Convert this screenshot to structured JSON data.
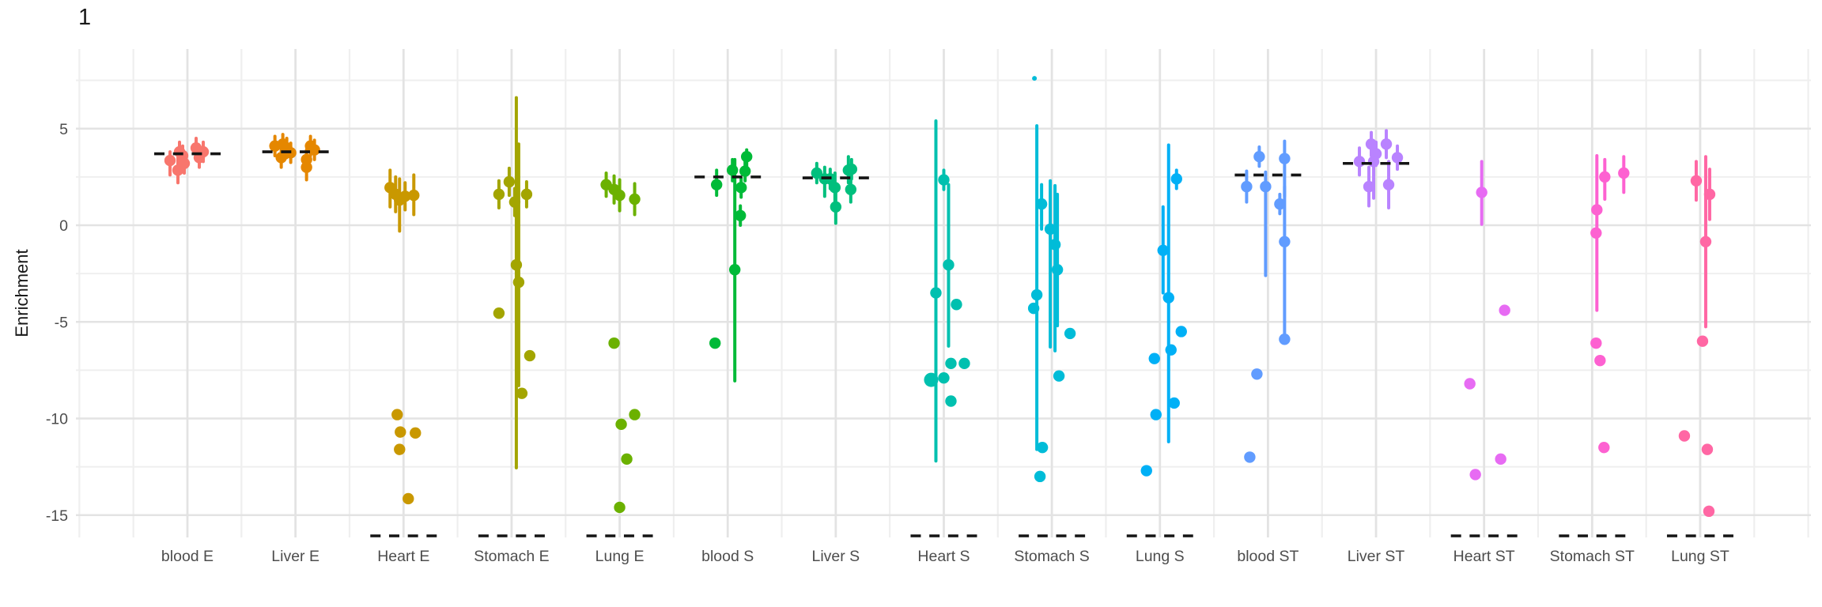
{
  "chart_data": {
    "type": "scatter",
    "title": "1",
    "ylabel": "Enrichment",
    "xlabel": "",
    "ylim": [
      -16.2,
      9.1
    ],
    "y_ticks": [
      5,
      0,
      -5,
      -10,
      -15
    ],
    "y_tick_labels": [
      "5",
      "0",
      "-5",
      "-10",
      "-15"
    ],
    "y_minor_ticks": [
      7.5,
      2.5,
      -2.5,
      -7.5,
      -12.5
    ],
    "grid": "major+minor",
    "legend_position": "none",
    "mean_dash_color": "#141414",
    "axis_text_color": "#4d4d4d",
    "groups": [
      {
        "label": "blood E",
        "color": "#F8766D",
        "mean": 3.7,
        "mean_clipped": false,
        "points": [
          {
            "dx": -22,
            "v": 3.35,
            "lo": 2.6,
            "hi": 3.8
          },
          {
            "dx": -12,
            "v": 2.85,
            "lo": 2.2,
            "hi": 3.5
          },
          {
            "dx": -10,
            "v": 3.8,
            "lo": 3.3,
            "hi": 4.3
          },
          {
            "dx": -6,
            "v": 3.6,
            "lo": 3.1,
            "hi": 4.1
          },
          {
            "dx": -4,
            "v": 3.2,
            "lo": 2.7,
            "hi": 3.7
          },
          {
            "dx": 11,
            "v": 4.0,
            "lo": 3.5,
            "hi": 4.5
          },
          {
            "dx": 15,
            "v": 3.5,
            "lo": 3.0,
            "hi": 4.0
          },
          {
            "dx": 20,
            "v": 3.8,
            "lo": 3.3,
            "hi": 4.3
          }
        ]
      },
      {
        "label": "Liver E",
        "color": "#E58700",
        "mean": 3.8,
        "mean_clipped": false,
        "points": [
          {
            "dx": -26,
            "v": 4.1,
            "lo": 3.6,
            "hi": 4.6
          },
          {
            "dx": -18,
            "v": 3.5,
            "lo": 3.0,
            "hi": 4.0
          },
          {
            "dx": -16,
            "v": 4.2,
            "lo": 3.7,
            "hi": 4.7
          },
          {
            "dx": -11,
            "v": 4.0,
            "lo": 3.5,
            "hi": 4.5
          },
          {
            "dx": -6,
            "v": 3.75,
            "lo": 3.25,
            "hi": 4.25
          },
          {
            "dx": 14,
            "v": 3.0,
            "lo": 2.35,
            "hi": 3.65
          },
          {
            "dx": 14,
            "v": 3.4,
            "lo": 2.9,
            "hi": 3.9
          },
          {
            "dx": 19,
            "v": 4.1,
            "lo": 3.6,
            "hi": 4.6
          },
          {
            "dx": 24,
            "v": 3.9,
            "lo": 3.4,
            "hi": 4.4
          }
        ]
      },
      {
        "label": "Heart E",
        "color": "#C99800",
        "mean": null,
        "mean_clipped": true,
        "points": [
          {
            "dx": -17,
            "v": 1.95,
            "lo": 0.95,
            "hi": 2.85
          },
          {
            "dx": -10,
            "v": 1.6,
            "lo": 0.7,
            "hi": 2.5
          },
          {
            "dx": -5,
            "v": 1.3,
            "lo": -0.3,
            "hi": 2.4
          },
          {
            "dx": 2,
            "v": 1.5,
            "lo": 0.8,
            "hi": 2.2
          },
          {
            "dx": 13,
            "v": 1.55,
            "lo": 0.55,
            "hi": 2.6
          },
          {
            "dx": -8,
            "v": -9.8
          },
          {
            "dx": -4,
            "v": -10.7
          },
          {
            "dx": 15,
            "v": -10.75
          },
          {
            "dx": -5,
            "v": -11.6
          },
          {
            "dx": 6,
            "v": -14.15
          }
        ]
      },
      {
        "label": "Stomach E",
        "color": "#A3A500",
        "mean": null,
        "mean_clipped": true,
        "points": [
          {
            "dx": -16,
            "v": 1.6,
            "lo": 0.9,
            "hi": 2.3
          },
          {
            "dx": -3,
            "v": 2.25,
            "lo": 1.55,
            "hi": 2.95
          },
          {
            "dx": 4,
            "v": 1.2,
            "lo": 0.5,
            "hi": 1.9
          },
          {
            "dx": 19,
            "v": 1.6,
            "lo": 0.95,
            "hi": 2.25
          },
          {
            "dx": 6,
            "v": -2.05,
            "lo": -12.55,
            "hi": 6.6
          },
          {
            "dx": 9,
            "v": -2.95,
            "lo": -8.3,
            "hi": 4.2
          },
          {
            "dx": -16,
            "v": -4.55
          },
          {
            "dx": 23,
            "v": -6.75
          },
          {
            "dx": 13,
            "v": -8.7
          }
        ]
      },
      {
        "label": "Lung E",
        "color": "#6BB100",
        "mean": null,
        "mean_clipped": true,
        "points": [
          {
            "dx": -17,
            "v": 2.1,
            "lo": 1.5,
            "hi": 2.7
          },
          {
            "dx": -7,
            "v": 1.85,
            "lo": 1.15,
            "hi": 2.55
          },
          {
            "dx": 0,
            "v": 1.55,
            "lo": 0.75,
            "hi": 2.35
          },
          {
            "dx": 19,
            "v": 1.35,
            "lo": 0.55,
            "hi": 2.15
          },
          {
            "dx": -7,
            "v": -6.1
          },
          {
            "dx": 19,
            "v": -9.8
          },
          {
            "dx": 2,
            "v": -10.3
          },
          {
            "dx": 9,
            "v": -12.1
          },
          {
            "dx": 0,
            "v": -14.6
          }
        ]
      },
      {
        "label": "blood S",
        "color": "#00BA38",
        "mean": 2.5,
        "mean_clipped": false,
        "points": [
          {
            "dx": -14,
            "v": 2.1,
            "lo": 1.55,
            "hi": 2.85
          },
          {
            "dx": 6,
            "v": 2.85,
            "lo": 2.3,
            "hi": 3.4
          },
          {
            "dx": 24,
            "v": 3.55,
            "lo": 3.05,
            "hi": 3.9
          },
          {
            "dx": 22,
            "v": 2.8,
            "lo": 2.3,
            "hi": 3.3
          },
          {
            "dx": 17,
            "v": 1.95,
            "lo": 1.45,
            "hi": 2.45
          },
          {
            "dx": 16,
            "v": 0.5,
            "lo": 0.0,
            "hi": 1.0
          },
          {
            "dx": 9,
            "v": -2.3,
            "lo": -8.05,
            "hi": 3.4
          },
          {
            "dx": -16,
            "v": -6.1
          }
        ]
      },
      {
        "label": "Liver S",
        "color": "#00BF7D",
        "mean": 2.45,
        "mean_clipped": false,
        "points": [
          {
            "dx": -24,
            "v": 2.7,
            "lo": 2.2,
            "hi": 3.2
          },
          {
            "dx": -14,
            "v": 2.4,
            "lo": 1.5,
            "hi": 3.0
          },
          {
            "dx": -7,
            "v": 2.4,
            "lo": 1.9,
            "hi": 2.9
          },
          {
            "dx": -1,
            "v": 1.95,
            "lo": 1.2,
            "hi": 2.7
          },
          {
            "dx": 0,
            "v": 0.95,
            "lo": 0.1,
            "hi": 1.8
          },
          {
            "dx": 16,
            "v": 2.85,
            "lo": 2.2,
            "hi": 3.55
          },
          {
            "dx": 20,
            "v": 2.9,
            "lo": 2.4,
            "hi": 3.4
          },
          {
            "dx": 19,
            "v": 1.85,
            "lo": 1.2,
            "hi": 2.5
          }
        ]
      },
      {
        "label": "Heart S",
        "color": "#00C0AF",
        "mean": null,
        "mean_clipped": true,
        "points": [
          {
            "dx": 0,
            "v": 2.35,
            "lo": 1.85,
            "hi": 2.85
          },
          {
            "dx": -10,
            "v": -3.5,
            "lo": -12.2,
            "hi": 5.4
          },
          {
            "dx": 6,
            "v": -2.05,
            "lo": -6.25,
            "hi": 2.1
          },
          {
            "dx": 16,
            "v": -4.1
          },
          {
            "dx": 9,
            "v": -7.15
          },
          {
            "dx": 26,
            "v": -7.15
          },
          {
            "dx": 0,
            "v": -7.9
          },
          {
            "dx": -16,
            "v": -8.0,
            "r": 9
          },
          {
            "dx": 9,
            "v": -9.1
          }
        ]
      },
      {
        "label": "Stomach S",
        "color": "#00BCD8",
        "mean": null,
        "mean_clipped": true,
        "points": [
          {
            "dx": -22,
            "v": 7.6,
            "r": 3
          },
          {
            "dx": -13,
            "v": 1.1,
            "lo": -0.2,
            "hi": 2.1
          },
          {
            "dx": -19,
            "v": -3.6,
            "lo": -11.6,
            "hi": 5.15
          },
          {
            "dx": -2,
            "v": -0.2,
            "lo": -6.3,
            "hi": 2.3
          },
          {
            "dx": 4,
            "v": -1.0,
            "lo": -6.5,
            "hi": 2.05
          },
          {
            "dx": 7,
            "v": -2.3,
            "lo": -5.2,
            "hi": 1.6
          },
          {
            "dx": -23,
            "v": -4.3
          },
          {
            "dx": 23,
            "v": -5.6
          },
          {
            "dx": 9,
            "v": -7.8
          },
          {
            "dx": -12,
            "v": -11.5
          },
          {
            "dx": -15,
            "v": -13.0
          }
        ]
      },
      {
        "label": "Lung S",
        "color": "#00B0F6",
        "mean": null,
        "mean_clipped": true,
        "points": [
          {
            "dx": 21,
            "v": 2.4,
            "lo": 1.9,
            "hi": 2.85
          },
          {
            "dx": 4,
            "v": -1.3,
            "lo": -3.5,
            "hi": 0.95
          },
          {
            "dx": 11,
            "v": -3.75,
            "lo": -11.2,
            "hi": 4.15
          },
          {
            "dx": 27,
            "v": -5.5
          },
          {
            "dx": 14,
            "v": -6.45
          },
          {
            "dx": -7,
            "v": -6.9
          },
          {
            "dx": 18,
            "v": -9.2
          },
          {
            "dx": -5,
            "v": -9.8
          },
          {
            "dx": -17,
            "v": -12.7
          }
        ]
      },
      {
        "label": "blood ST",
        "color": "#619CFF",
        "mean": 2.6,
        "mean_clipped": false,
        "points": [
          {
            "dx": -11,
            "v": 3.55,
            "lo": 3.05,
            "hi": 4.05
          },
          {
            "dx": -27,
            "v": 2.0,
            "lo": 1.2,
            "hi": 2.8
          },
          {
            "dx": -3,
            "v": 2.0,
            "lo": -2.6,
            "hi": 2.75
          },
          {
            "dx": 21,
            "v": 3.45,
            "lo": 1.5,
            "hi": 4.35
          },
          {
            "dx": 15,
            "v": 1.1,
            "lo": 0.6,
            "hi": 1.6
          },
          {
            "dx": 21,
            "v": -0.85,
            "lo": -5.9,
            "hi": 2.0
          },
          {
            "dx": 21,
            "v": -5.9
          },
          {
            "dx": -14,
            "v": -7.7
          },
          {
            "dx": -23,
            "v": -12.0
          }
        ]
      },
      {
        "label": "Liver ST",
        "color": "#B983FF",
        "mean": 3.2,
        "mean_clipped": false,
        "points": [
          {
            "dx": -21,
            "v": 3.3,
            "lo": 2.6,
            "hi": 4.0
          },
          {
            "dx": -6,
            "v": 4.2,
            "lo": 3.6,
            "hi": 4.8
          },
          {
            "dx": 0,
            "v": 3.7,
            "lo": 3.1,
            "hi": 4.3
          },
          {
            "dx": -3,
            "v": 3.3,
            "lo": 1.4,
            "hi": 4.2
          },
          {
            "dx": 13,
            "v": 4.2,
            "lo": 3.5,
            "hi": 4.9
          },
          {
            "dx": -9,
            "v": 2.0,
            "lo": 1.0,
            "hi": 3.0
          },
          {
            "dx": 16,
            "v": 2.1,
            "lo": 0.9,
            "hi": 3.3
          },
          {
            "dx": 27,
            "v": 3.5,
            "lo": 2.9,
            "hi": 4.1
          }
        ]
      },
      {
        "label": "Heart ST",
        "color": "#E76BF3",
        "mean": null,
        "mean_clipped": true,
        "points": [
          {
            "dx": -3,
            "v": 1.7,
            "lo": 0.05,
            "hi": 3.3
          },
          {
            "dx": 26,
            "v": -4.4
          },
          {
            "dx": -18,
            "v": -8.2
          },
          {
            "dx": 21,
            "v": -12.1
          },
          {
            "dx": -11,
            "v": -12.9
          }
        ]
      },
      {
        "label": "Stomach ST",
        "color": "#FD61D1",
        "mean": null,
        "mean_clipped": true,
        "points": [
          {
            "dx": 16,
            "v": 2.5,
            "lo": 1.35,
            "hi": 3.4
          },
          {
            "dx": 40,
            "v": 2.7,
            "lo": 1.7,
            "hi": 3.55
          },
          {
            "dx": 6,
            "v": 0.8,
            "lo": -4.4,
            "hi": 3.6
          },
          {
            "dx": 5,
            "v": -0.4
          },
          {
            "dx": 5,
            "v": -6.1
          },
          {
            "dx": 10,
            "v": -7.0
          },
          {
            "dx": 15,
            "v": -11.5
          }
        ]
      },
      {
        "label": "Lung ST",
        "color": "#FF67A4",
        "mean": null,
        "mean_clipped": true,
        "points": [
          {
            "dx": -5,
            "v": 2.3,
            "lo": 1.3,
            "hi": 3.3
          },
          {
            "dx": 12,
            "v": 1.6,
            "lo": 0.3,
            "hi": 2.9
          },
          {
            "dx": 7,
            "v": -0.85,
            "lo": -5.25,
            "hi": 3.55
          },
          {
            "dx": 3,
            "v": -6.0
          },
          {
            "dx": -20,
            "v": -10.9
          },
          {
            "dx": 9,
            "v": -11.6
          },
          {
            "dx": 11,
            "v": -14.8
          }
        ]
      }
    ]
  }
}
